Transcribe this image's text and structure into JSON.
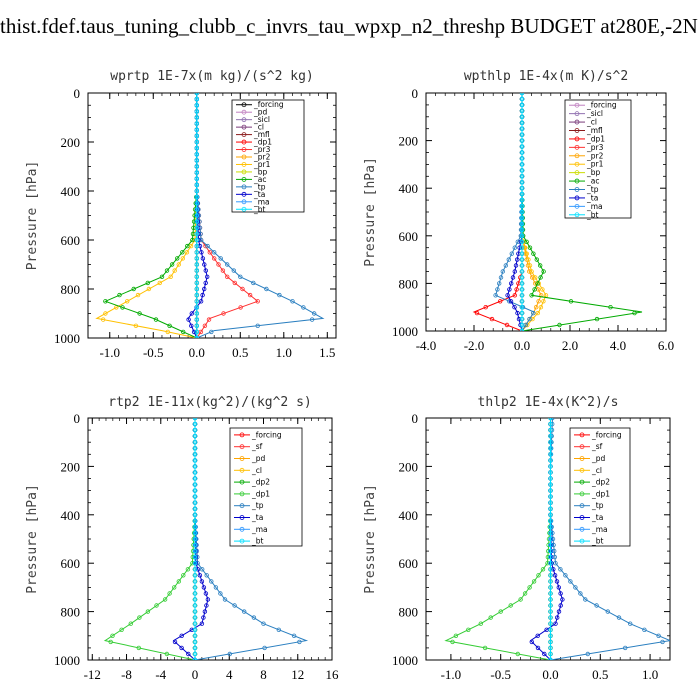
{
  "page": {
    "title": "thist.fdef.taus_tuning_clubb_c_invrs_tau_wpxp_n2_threshp  BUDGET at280E,-2N"
  },
  "chart_data": [
    {
      "type": "line",
      "title": "wprtp   1E-7x(m kg)/(s^2 kg)",
      "ylabel": "Pressure [hPa]",
      "xlim": [
        -1.25,
        1.6
      ],
      "ylim": [
        0,
        1000
      ],
      "y_inverted": true,
      "xticks": [
        "-1.0",
        "-0.5",
        "0.0",
        "0.5",
        "1.0",
        "1.5"
      ],
      "xtick_values": [
        -1.0,
        -0.5,
        0.0,
        0.5,
        1.0,
        1.5
      ],
      "yticks": [
        "0",
        "200",
        "400",
        "600",
        "800",
        "1000"
      ],
      "yticks_values": [
        0,
        200,
        400,
        600,
        800,
        1000
      ],
      "legend_position": "top-right",
      "series": [
        {
          "name": "_forcing",
          "color": "#000000",
          "x": [
            0,
            0,
            0,
            0,
            0,
            0,
            0
          ]
        },
        {
          "name": "_pd",
          "color": "#c080c0",
          "x": [
            0,
            0,
            0,
            0,
            0,
            0,
            0
          ]
        },
        {
          "name": "_sicl",
          "color": "#9070b0",
          "x": [
            0,
            0,
            0,
            0,
            0,
            0,
            0
          ]
        },
        {
          "name": "_cl",
          "color": "#7a3b7a",
          "x": [
            0,
            0,
            0,
            0,
            0,
            0,
            0
          ]
        },
        {
          "name": "_mfl",
          "color": "#8b1a1a",
          "x": [
            0,
            0,
            0,
            0,
            0,
            0,
            0
          ]
        },
        {
          "name": "_dp1",
          "color": "#ff0000",
          "x": [
            0,
            0,
            0,
            0,
            0,
            0,
            0
          ]
        },
        {
          "name": "_pr3",
          "color": "#ff3030",
          "x": [
            0,
            0,
            0,
            0.05,
            0.35,
            0.7,
            0.15,
            0
          ]
        },
        {
          "name": "_pr2",
          "color": "#ffa500",
          "x": [
            0,
            0,
            0,
            0,
            0,
            0,
            0
          ]
        },
        {
          "name": "_pr1",
          "color": "#ffc000",
          "x": [
            0,
            0,
            0,
            -0.02,
            -0.3,
            -0.8,
            -1.15,
            -0.4,
            0
          ]
        },
        {
          "name": "_bp",
          "color": "#ccdd00",
          "x": [
            0,
            0,
            0,
            0,
            0,
            0,
            0
          ]
        },
        {
          "name": "_ac",
          "color": "#00aa00",
          "x": [
            0,
            0,
            0,
            -0.05,
            -0.4,
            -1.05,
            -0.5,
            0
          ]
        },
        {
          "name": "_tp",
          "color": "#2a7fc0",
          "x": [
            0,
            0,
            0,
            0.05,
            0.5,
            1.1,
            1.45,
            0.2,
            0
          ]
        },
        {
          "name": "_ta",
          "color": "#0000cc",
          "x": [
            0,
            0,
            0,
            0.02,
            0.12,
            0.05,
            -0.1,
            0
          ]
        },
        {
          "name": "_ma",
          "color": "#3399ff",
          "x": [
            0,
            0,
            0,
            0,
            0,
            0,
            0
          ]
        },
        {
          "name": "_bt",
          "color": "#00e0ff",
          "x": [
            0,
            0,
            0,
            0,
            0,
            0,
            0
          ]
        }
      ]
    },
    {
      "type": "line",
      "title": "wpthlp   1E-4x(m K)/s^2",
      "ylabel": "Pressure [hPa]",
      "xlim": [
        -4.0,
        6.0
      ],
      "ylim": [
        0,
        1000
      ],
      "y_inverted": true,
      "xticks": [
        "-4.0",
        "-2.0",
        "0.0",
        "2.0",
        "4.0",
        "6.0"
      ],
      "xtick_values": [
        -4.0,
        -2.0,
        0.0,
        2.0,
        4.0,
        6.0
      ],
      "yticks": [
        "0",
        "200",
        "400",
        "600",
        "800",
        "1000"
      ],
      "yticks_values": [
        0,
        200,
        400,
        600,
        800,
        1000
      ],
      "legend_position": "top-right",
      "series": [
        {
          "name": "_forcing",
          "color": "#c080c0",
          "x": [
            0,
            0,
            0,
            0,
            0,
            0,
            0
          ]
        },
        {
          "name": "_sicl",
          "color": "#9070b0",
          "x": [
            0,
            0,
            0,
            0,
            0,
            0,
            0
          ]
        },
        {
          "name": "_cl",
          "color": "#7a3b7a",
          "x": [
            0,
            0,
            0,
            0,
            0,
            0,
            0
          ]
        },
        {
          "name": "_mfl",
          "color": "#8b1a1a",
          "x": [
            0,
            0,
            0,
            0,
            0,
            0,
            0
          ]
        },
        {
          "name": "_dp1",
          "color": "#ff0000",
          "x": [
            0,
            0,
            0,
            0,
            0,
            -0.3,
            -2.0,
            0
          ]
        },
        {
          "name": "_pr3",
          "color": "#ff3030",
          "x": [
            0,
            0,
            0,
            0,
            0,
            0,
            0
          ]
        },
        {
          "name": "_pr2",
          "color": "#ffa500",
          "x": [
            0,
            0,
            0,
            0,
            0.3,
            0.8,
            0.5,
            0
          ]
        },
        {
          "name": "_pr1",
          "color": "#ffc000",
          "x": [
            0,
            0,
            0,
            0,
            0.4,
            1.0,
            0.7,
            0
          ]
        },
        {
          "name": "_bp",
          "color": "#ccdd00",
          "x": [
            0,
            0,
            0,
            0,
            0,
            0,
            0
          ]
        },
        {
          "name": "_ac",
          "color": "#00aa00",
          "x": [
            0,
            0,
            0,
            0.05,
            0.9,
            0.4,
            5.0,
            0
          ]
        },
        {
          "name": "_tp",
          "color": "#2a7fc0",
          "x": [
            0,
            0,
            0,
            -0.05,
            -0.8,
            -1.1,
            0.5,
            0
          ]
        },
        {
          "name": "_ta",
          "color": "#0000cc",
          "x": [
            0,
            0,
            0,
            0,
            -0.3,
            -0.6,
            -0.2,
            0
          ]
        },
        {
          "name": "_ma",
          "color": "#3399ff",
          "x": [
            0,
            0,
            0,
            0,
            0,
            0,
            0
          ]
        },
        {
          "name": "_bt",
          "color": "#00e0ff",
          "x": [
            0,
            0,
            0,
            0,
            0,
            0,
            0
          ]
        }
      ]
    },
    {
      "type": "line",
      "title": "rtp2   1E-11x(kg^2)/(kg^2 s)",
      "ylabel": "Pressure [hPa]",
      "xlim": [
        -12.5,
        16
      ],
      "ylim": [
        0,
        1000
      ],
      "y_inverted": true,
      "xticks": [
        "-12",
        "-8",
        "-4",
        "0",
        "4",
        "8",
        "12",
        "16"
      ],
      "xtick_values": [
        -12,
        -8,
        -4,
        0,
        4,
        8,
        12,
        16
      ],
      "yticks": [
        "0",
        "200",
        "400",
        "600",
        "800",
        "1000"
      ],
      "yticks_values": [
        0,
        200,
        400,
        600,
        800,
        1000
      ],
      "legend_position": "top-right",
      "series": [
        {
          "name": "_forcing",
          "color": "#ff0000",
          "x": [
            0,
            0,
            0,
            0,
            0,
            0,
            0
          ]
        },
        {
          "name": "_sf",
          "color": "#ff3030",
          "x": [
            0,
            0,
            0,
            0,
            0,
            0,
            0
          ]
        },
        {
          "name": "_pd",
          "color": "#ffa500",
          "x": [
            0,
            0,
            0,
            0,
            0,
            0,
            0
          ]
        },
        {
          "name": "_cl",
          "color": "#ffc000",
          "x": [
            0,
            0,
            0,
            0,
            0,
            0,
            0
          ]
        },
        {
          "name": "_dp2",
          "color": "#00aa00",
          "x": [
            0,
            0,
            0,
            0,
            0,
            0,
            0
          ]
        },
        {
          "name": "_dp1",
          "color": "#33cc33",
          "x": [
            0,
            0,
            0,
            -0.3,
            -3.5,
            -7.5,
            -10.5,
            0
          ]
        },
        {
          "name": "_tp",
          "color": "#2a7fc0",
          "x": [
            0,
            0,
            0,
            0.3,
            3.5,
            8.0,
            13.0,
            0
          ]
        },
        {
          "name": "_ta",
          "color": "#0000cc",
          "x": [
            0,
            0,
            0,
            0.1,
            1.5,
            0.8,
            -2.5,
            0
          ]
        },
        {
          "name": "_ma",
          "color": "#3399ff",
          "x": [
            0,
            0,
            0,
            0,
            0,
            0,
            0
          ]
        },
        {
          "name": "_bt",
          "color": "#00e0ff",
          "x": [
            0,
            0,
            0,
            0,
            0,
            0,
            0
          ]
        }
      ]
    },
    {
      "type": "line",
      "title": "thlp2   1E-4x(K^2)/s",
      "ylabel": "Pressure [hPa]",
      "xlim": [
        -1.25,
        1.2
      ],
      "ylim": [
        0,
        1000
      ],
      "y_inverted": true,
      "xticks": [
        "-1.0",
        "-0.5",
        "0.0",
        "0.5",
        "1.0"
      ],
      "xtick_values": [
        -1.0,
        -0.5,
        0.0,
        0.5,
        1.0
      ],
      "yticks": [
        "0",
        "200",
        "400",
        "600",
        "800",
        "1000"
      ],
      "yticks_values": [
        0,
        200,
        400,
        600,
        800,
        1000
      ],
      "legend_position": "top-right",
      "series": [
        {
          "name": "_forcing",
          "color": "#ff0000",
          "x": [
            0,
            0,
            0,
            0,
            0,
            0,
            0
          ]
        },
        {
          "name": "_sf",
          "color": "#ff3030",
          "x": [
            0,
            0,
            0,
            0,
            0,
            0,
            0
          ]
        },
        {
          "name": "_pd",
          "color": "#ffa500",
          "x": [
            0,
            0,
            0,
            0,
            0,
            0,
            0
          ]
        },
        {
          "name": "_cl",
          "color": "#ffc000",
          "x": [
            0,
            0,
            0,
            0,
            0,
            0,
            0
          ]
        },
        {
          "name": "_dp2",
          "color": "#00aa00",
          "x": [
            0,
            0,
            0,
            0,
            0,
            0,
            0
          ]
        },
        {
          "name": "_dp1",
          "color": "#33cc33",
          "x": [
            0,
            0,
            0,
            -0.03,
            -0.3,
            -0.7,
            -1.05,
            0
          ]
        },
        {
          "name": "_tp",
          "color": "#2a7fc0",
          "x": [
            0.02,
            0,
            0,
            0.05,
            0.35,
            0.8,
            1.2,
            0
          ]
        },
        {
          "name": "_ta",
          "color": "#0000cc",
          "x": [
            0,
            0,
            0,
            0.01,
            0.12,
            0.05,
            -0.2,
            0
          ]
        },
        {
          "name": "_ma",
          "color": "#3399ff",
          "x": [
            0,
            0,
            0,
            0,
            0,
            0,
            0
          ]
        },
        {
          "name": "_bt",
          "color": "#00e0ff",
          "x": [
            0,
            0,
            0,
            0,
            0,
            0,
            0
          ]
        }
      ]
    }
  ],
  "profile_levels_hpa": [
    0,
    200,
    400,
    600,
    750,
    850,
    920,
    1000
  ]
}
